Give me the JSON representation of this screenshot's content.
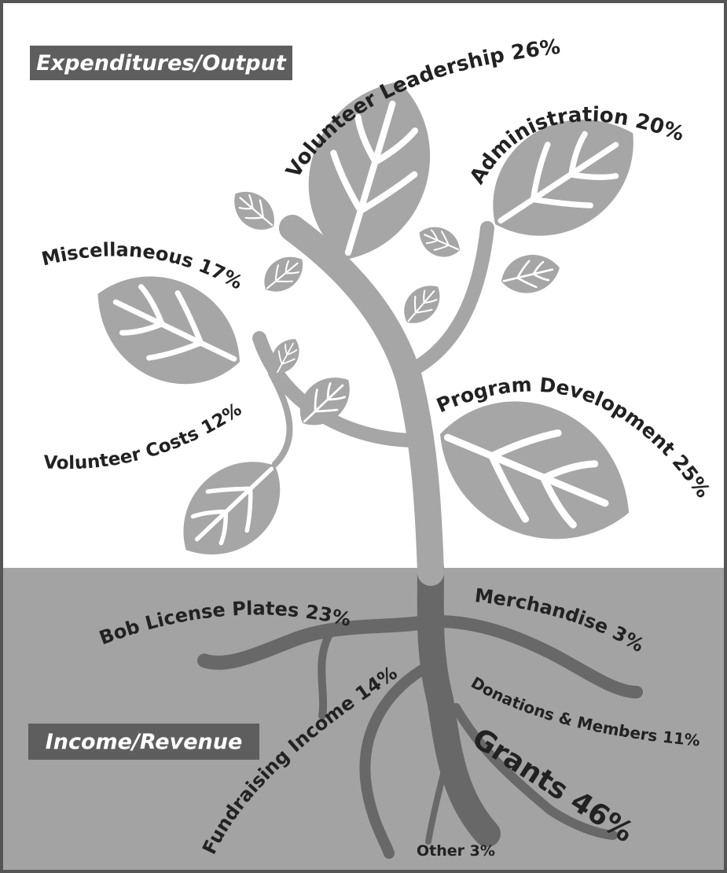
{
  "expenditures": {
    "title": "Expenditures/Output",
    "items": [
      {
        "label": "Volunteer Leadership 26%"
      },
      {
        "label": "Administration 20%"
      },
      {
        "label": "Miscellaneous 17%"
      },
      {
        "label": "Volunteer Costs 12%"
      },
      {
        "label": "Program Development 25%"
      }
    ]
  },
  "income": {
    "title": "Income/Revenue",
    "items": [
      {
        "label": "Bob License Plates 23%"
      },
      {
        "label": "Merchandise 3%"
      },
      {
        "label": "Donations & Members 11%"
      },
      {
        "label": "Grants 46%"
      },
      {
        "label": "Fundraising Income 14%"
      },
      {
        "label": "Other 3%"
      }
    ]
  }
}
